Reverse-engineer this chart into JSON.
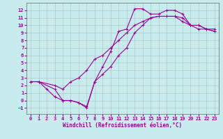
{
  "background_color": "#c8ecee",
  "grid_color": "#b0c8c8",
  "line_color": "#990099",
  "marker": "+",
  "markersize": 3,
  "linewidth": 0.8,
  "xlabel": "Windchill (Refroidissement éolien,°C)",
  "xlabel_fontsize": 5.5,
  "tick_fontsize": 5,
  "xlim": [
    -0.5,
    23.5
  ],
  "ylim": [
    -1.8,
    13.0
  ],
  "xticks": [
    0,
    1,
    2,
    3,
    4,
    5,
    6,
    7,
    8,
    9,
    10,
    11,
    12,
    13,
    14,
    15,
    16,
    17,
    18,
    19,
    20,
    21,
    22,
    23
  ],
  "yticks": [
    -1,
    0,
    1,
    2,
    3,
    4,
    5,
    6,
    7,
    8,
    9,
    10,
    11,
    12
  ],
  "curve1_x": [
    0,
    1,
    2,
    3,
    4,
    5,
    6,
    7,
    8,
    9,
    10,
    11,
    12,
    13,
    14,
    15,
    16,
    17,
    18,
    19,
    20,
    21,
    22,
    23
  ],
  "curve1_y": [
    2.5,
    2.5,
    1.5,
    0.5,
    0.0,
    0.0,
    -0.3,
    -0.8,
    2.5,
    4.5,
    6.5,
    9.2,
    9.5,
    12.2,
    12.2,
    11.5,
    11.5,
    12.0,
    12.0,
    11.5,
    10.0,
    10.0,
    9.5,
    9.5
  ],
  "curve2_x": [
    0,
    1,
    3,
    4,
    5,
    6,
    7,
    8,
    9,
    10,
    11,
    12,
    13,
    14,
    15,
    16,
    17,
    18,
    19,
    20,
    21,
    22,
    23
  ],
  "curve2_y": [
    2.5,
    2.5,
    2.0,
    1.5,
    2.5,
    3.0,
    4.0,
    5.5,
    6.0,
    7.0,
    8.0,
    9.0,
    10.0,
    10.5,
    11.0,
    11.2,
    11.2,
    11.2,
    10.5,
    10.0,
    9.5,
    9.5,
    9.2
  ],
  "curve3_x": [
    0,
    1,
    3,
    4,
    5,
    6,
    7,
    8,
    9,
    10,
    11,
    12,
    13,
    14,
    15,
    16,
    17,
    18,
    19,
    20,
    21,
    22,
    23
  ],
  "curve3_y": [
    2.5,
    2.5,
    1.5,
    0.0,
    0.0,
    -0.3,
    -1.0,
    2.5,
    3.5,
    4.5,
    6.0,
    7.0,
    9.0,
    10.0,
    11.0,
    11.2,
    11.2,
    11.2,
    11.0,
    10.0,
    10.0,
    9.5,
    9.2
  ]
}
